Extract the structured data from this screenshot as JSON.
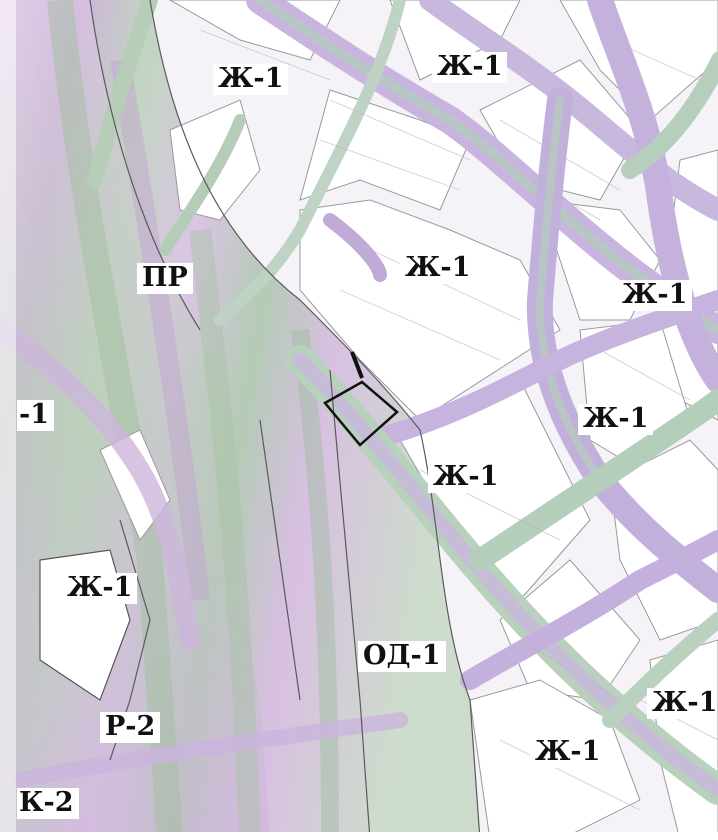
{
  "zones": [
    {
      "id": "zh1-a",
      "label": "Ж-1"
    },
    {
      "id": "zh1-b",
      "label": "Ж-1"
    },
    {
      "id": "pr",
      "label": "ПР"
    },
    {
      "id": "zh1-c",
      "label": "Ж-1"
    },
    {
      "id": "zh1-d",
      "label": "Ж-1"
    },
    {
      "id": "cut-1",
      "label": "-1"
    },
    {
      "id": "zh1-e",
      "label": "Ж-1"
    },
    {
      "id": "zh1-f",
      "label": "Ж-1"
    },
    {
      "id": "zh1-g",
      "label": "Ж-1"
    },
    {
      "id": "od1",
      "label": "ОД-1"
    },
    {
      "id": "zh1-h",
      "label": "Ж-1"
    },
    {
      "id": "r2",
      "label": "Р-2"
    },
    {
      "id": "zh1-i",
      "label": "Ж-1"
    },
    {
      "id": "zh2-cut",
      "label": "К-2"
    }
  ],
  "colors": {
    "background": "#f4f2f6",
    "block_fill": "#ffffff",
    "street_purple": "#c9b6e0",
    "street_green": "#a9c7b4",
    "terrain_purple": "#d8bfe0",
    "terrain_green": "#a8c2a6",
    "boundary": "#555555",
    "parcel_outline": "#111111"
  },
  "features": {
    "parcel_marker": "target-parcel",
    "map_type": "zoning-map"
  }
}
